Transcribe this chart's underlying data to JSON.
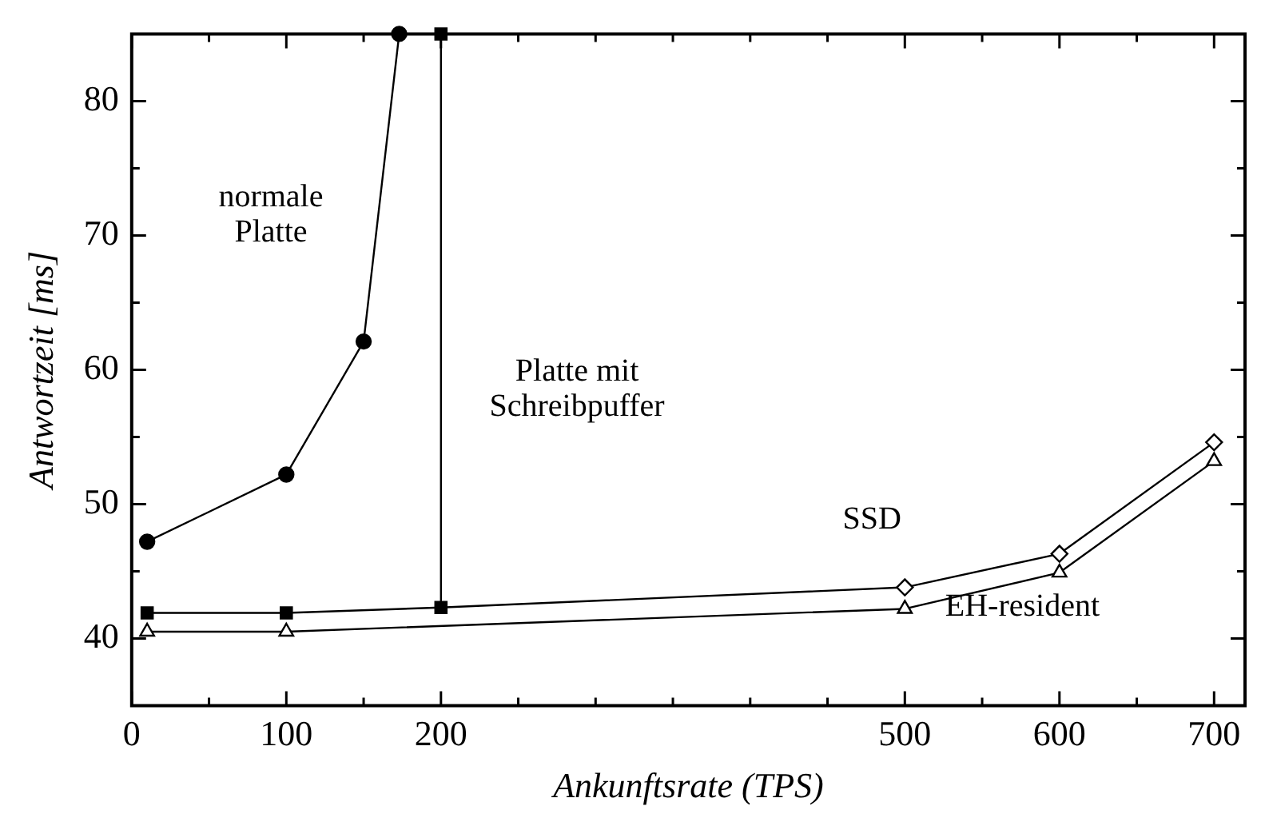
{
  "chart_data": {
    "type": "line",
    "xlabel": "Ankunftsrate (TPS)",
    "ylabel": "Antwortzeit [ms]",
    "xlim": [
      0,
      720
    ],
    "ylim": [
      35,
      85
    ],
    "xticks": [
      0,
      {
        "value": 50,
        "label": null
      },
      100,
      {
        "value": 150,
        "label": null
      },
      200,
      {
        "value": 250,
        "label": null
      },
      {
        "value": 300,
        "label": null
      },
      {
        "value": 350,
        "label": null
      },
      {
        "value": 400,
        "label": null
      },
      {
        "value": 450,
        "label": null
      },
      500,
      {
        "value": 550,
        "label": null
      },
      600,
      {
        "value": 650,
        "label": null
      },
      700
    ],
    "yticks": [
      40,
      {
        "value": 45,
        "label": null
      },
      50,
      {
        "value": 55,
        "label": null
      },
      60,
      {
        "value": 65,
        "label": null
      },
      70,
      {
        "value": 75,
        "label": null
      },
      80
    ],
    "legend": false,
    "line_style": "solid",
    "series": [
      {
        "name": "normale Platte",
        "color": "#000000",
        "marker": "circle",
        "x": [
          10,
          100,
          150,
          173
        ],
        "values": [
          47.2,
          52.2,
          62.1,
          85
        ]
      },
      {
        "name": "Platte mit Schreibpuffer",
        "color": "#000000",
        "marker": "square",
        "x": [
          10,
          100,
          200,
          200
        ],
        "values": [
          41.9,
          41.9,
          42.3,
          85
        ]
      },
      {
        "name": "SSD",
        "color": "#000000",
        "marker": "diamond",
        "x": [
          200,
          500,
          600,
          700
        ],
        "values": [
          42.3,
          43.8,
          46.3,
          54.6
        ]
      },
      {
        "name": "EH-resident",
        "color": "#000000",
        "marker": "triangle",
        "x": [
          10,
          100,
          500,
          600,
          700
        ],
        "values": [
          40.5,
          40.5,
          42.2,
          44.9,
          53.2
        ]
      }
    ]
  }
}
